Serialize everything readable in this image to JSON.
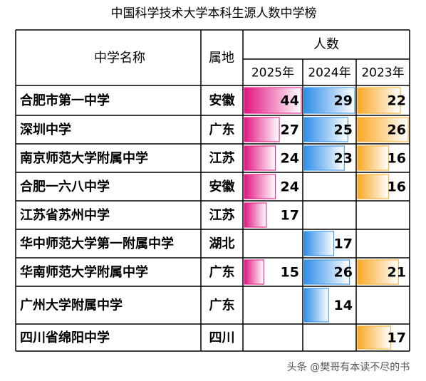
{
  "title": "中国科学技术大学本科生源人数中学榜",
  "header": {
    "name": "中学名称",
    "region": "属地",
    "group": "人数",
    "years": [
      "2025年",
      "2024年",
      "2023年"
    ]
  },
  "colors": [
    "#e0157f",
    "#2e8ee8",
    "#f9a825"
  ],
  "rows": [
    {
      "name": "合肥市第一中学",
      "region": "安徽",
      "values": [
        44,
        29,
        22
      ]
    },
    {
      "name": "深圳中学",
      "region": "广东",
      "values": [
        27,
        25,
        26
      ]
    },
    {
      "name": "南京师范大学附属中学",
      "region": "江苏",
      "values": [
        24,
        23,
        16
      ]
    },
    {
      "name": "合肥一六八中学",
      "region": "安徽",
      "values": [
        24,
        null,
        16
      ]
    },
    {
      "name": "江苏省苏州中学",
      "region": "江苏",
      "values": [
        17,
        null,
        null
      ]
    },
    {
      "name": "华中师范大学第一附属中学",
      "region": "湖北",
      "values": [
        null,
        17,
        null
      ]
    },
    {
      "name": "华南师范大学附属中学",
      "region": "广东",
      "values": [
        15,
        26,
        21
      ]
    },
    {
      "name": "广州大学附属中学",
      "region": "广东",
      "values": [
        null,
        14,
        null
      ]
    },
    {
      "name": "四川省绵阳中学",
      "region": "四川",
      "values": [
        null,
        null,
        17
      ]
    }
  ],
  "watermark": "头条 @樊哥有本读不尽的书"
}
